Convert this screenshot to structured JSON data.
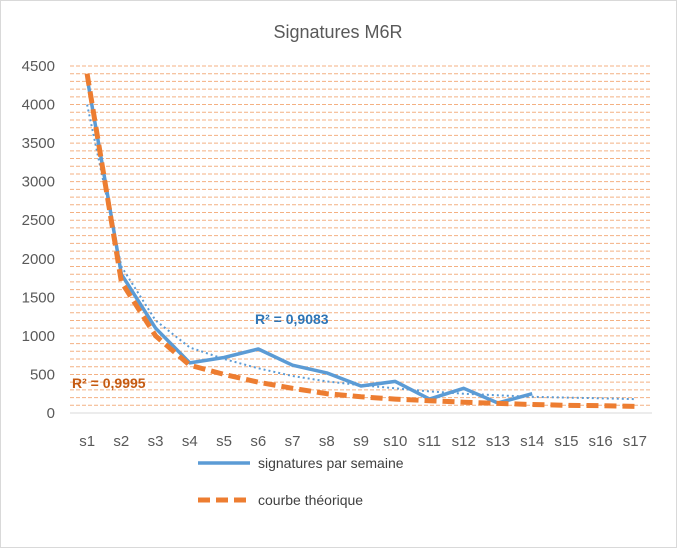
{
  "chart_data": {
    "type": "line",
    "title": "Signatures M6R",
    "categories": [
      "s1",
      "s2",
      "s3",
      "s4",
      "s5",
      "s6",
      "s7",
      "s8",
      "s9",
      "s10",
      "s11",
      "s12",
      "s13",
      "s14",
      "s15",
      "s16",
      "s17"
    ],
    "y_ticks": [
      "0",
      "500",
      "1000",
      "1500",
      "2000",
      "2500",
      "3000",
      "3500",
      "4000",
      "4500"
    ],
    "ylim": [
      0,
      4500
    ],
    "grid": "horizontal dashed, every 100",
    "legend_position": "bottom",
    "series": [
      {
        "name": "signatures par semaine",
        "color": "#5b9bd5",
        "style": "solid",
        "values": [
          4350,
          1800,
          1100,
          650,
          720,
          830,
          620,
          520,
          350,
          410,
          180,
          320,
          130,
          250,
          null,
          null,
          null
        ]
      },
      {
        "name": "courbe théorique",
        "color": "#ed7d31",
        "style": "dashed",
        "values": [
          4400,
          1700,
          1000,
          620,
          500,
          400,
          320,
          250,
          210,
          180,
          160,
          140,
          125,
          110,
          100,
          95,
          85
        ]
      }
    ],
    "trendline": {
      "color": "#5b9bd5",
      "style": "dotted",
      "values": [
        4000,
        1900,
        1200,
        850,
        700,
        580,
        480,
        410,
        360,
        320,
        280,
        250,
        230,
        210,
        200,
        190,
        180
      ]
    },
    "annotations": [
      {
        "text": "R² = 0,9083",
        "color": "#2e75b6"
      },
      {
        "text": "R² = 0,9995",
        "color": "#c55a11"
      }
    ]
  }
}
